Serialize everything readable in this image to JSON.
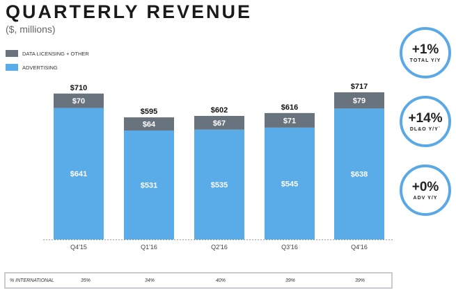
{
  "title": "QUARTERLY REVENUE",
  "subtitle": "($, millions)",
  "legend": [
    {
      "label": "DATA LICENSING + OTHER",
      "color": "#68737d"
    },
    {
      "label": "ADVERTISING",
      "color": "#5aace8"
    }
  ],
  "kpis": [
    {
      "value": "+1%",
      "label": "TOTAL Y/Y"
    },
    {
      "value": "+14%",
      "label": "DL&O Y/Y`"
    },
    {
      "value": "+0%",
      "label": "ADV Y/Y"
    }
  ],
  "international": {
    "label": "% INTERNATIONAL",
    "values": [
      "35%",
      "34%",
      "40%",
      "39%",
      "39%"
    ]
  },
  "chart_data": {
    "type": "bar",
    "stacked": true,
    "title": "QUARTERLY REVENUE",
    "ylabel": "($, millions)",
    "categories": [
      "Q4'15",
      "Q1'16",
      "Q2'16",
      "Q3'16",
      "Q4'16"
    ],
    "series": [
      {
        "name": "ADVERTISING",
        "values": [
          641,
          531,
          535,
          545,
          638
        ],
        "labels": [
          "$641",
          "$531",
          "$535",
          "$545",
          "$638"
        ],
        "color": "#5aace8"
      },
      {
        "name": "DATA LICENSING + OTHER",
        "values": [
          70,
          64,
          67,
          71,
          79
        ],
        "labels": [
          "$70",
          "$64",
          "$67",
          "$71",
          "$79"
        ],
        "color": "#68737d"
      }
    ],
    "totals": [
      710,
      595,
      602,
      616,
      717
    ],
    "total_labels": [
      "$710",
      "$595",
      "$602",
      "$616",
      "$717"
    ],
    "ylim": [
      0,
      717
    ]
  }
}
